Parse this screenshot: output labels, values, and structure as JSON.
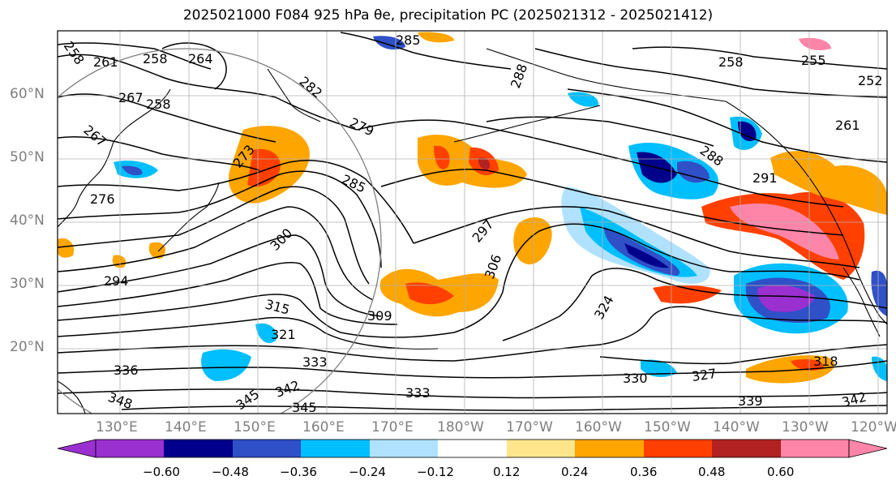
{
  "title": "2025021000 F084 925 hPa θe, precipitation PC (2025021312 - 2025021412)",
  "map": {
    "lat_labels": [
      "60°N",
      "50°N",
      "40°N",
      "30°N",
      "20°N"
    ],
    "lon_labels": [
      "130°E",
      "140°E",
      "150°E",
      "160°E",
      "170°E",
      "180°W",
      "170°W",
      "160°W",
      "150°W",
      "140°W",
      "130°W",
      "120°W"
    ],
    "contour_labels": [
      "258",
      "261",
      "258",
      "264",
      "267",
      "258",
      "267",
      "276",
      "285",
      "282",
      "279",
      "285",
      "273",
      "288",
      "297",
      "306",
      "315",
      "309",
      "324",
      "321",
      "333",
      "336",
      "348",
      "345",
      "342",
      "345",
      "333",
      "330",
      "327",
      "339",
      "342",
      "318",
      "258",
      "255",
      "261",
      "252",
      "288",
      "291",
      "294",
      "300"
    ],
    "land_color": "#000000",
    "contour_color": "#000000",
    "grid_color": "#b0b0b0"
  },
  "colorbar": {
    "colors": [
      "#9b30d0",
      "#00008b",
      "#3050c8",
      "#00bfff",
      "#b0e2ff",
      "#ffffff",
      "#ffe68c",
      "#ffa500",
      "#ff4000",
      "#b22222",
      "#ff85a8"
    ],
    "tick_labels": [
      "−0.60",
      "−0.48",
      "−0.36",
      "−0.24",
      "−0.12",
      "0.12",
      "0.24",
      "0.36",
      "0.48",
      "0.60"
    ]
  }
}
